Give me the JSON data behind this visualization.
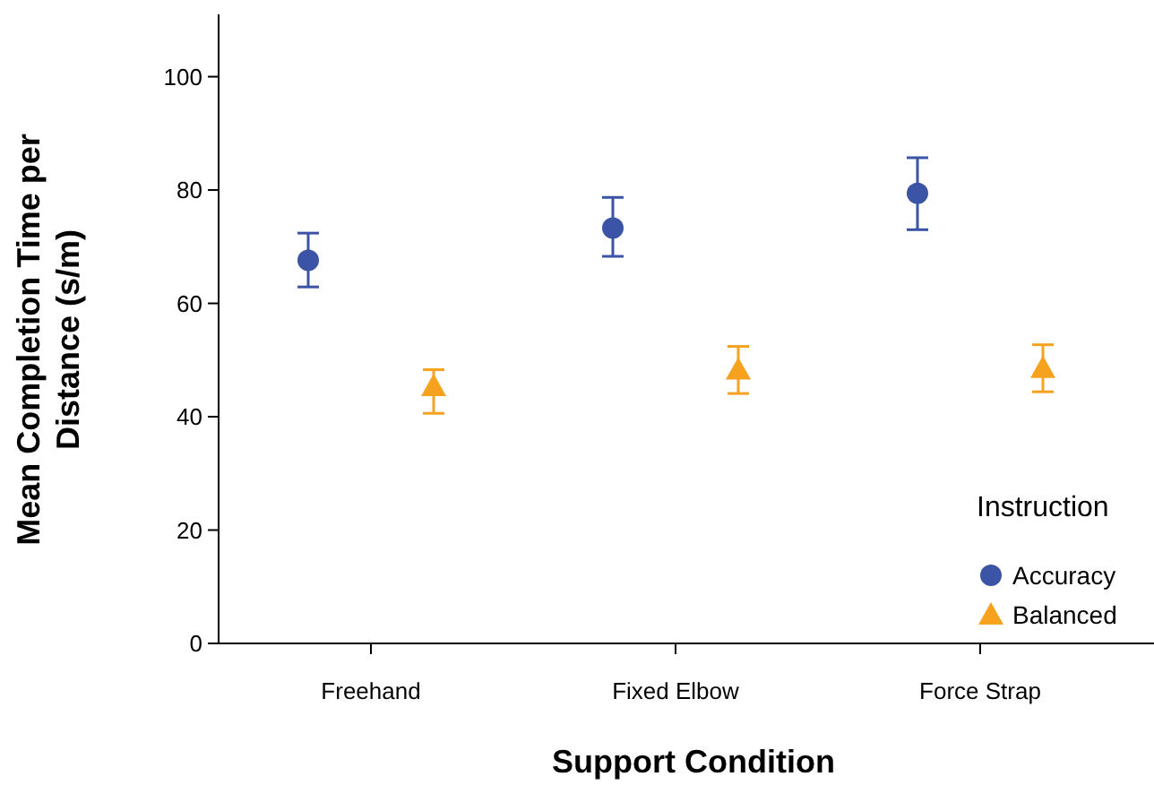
{
  "chart_data": {
    "type": "scatter",
    "xlabel": "Support Condition",
    "ylabel": "Mean Completion Time per Distance (s/m)",
    "legend_title": "Instruction",
    "legend": "bottom right",
    "grid": false,
    "categories": [
      "Freehand",
      "Fixed Elbow",
      "Force Strap"
    ],
    "ylim": [
      0,
      111
    ],
    "yticks": [
      0,
      20,
      40,
      60,
      80,
      100
    ],
    "series": [
      {
        "name": "Accuracy",
        "color": "#3b54a5",
        "marker": "circle",
        "values": [
          67.6,
          73.3,
          79.4
        ],
        "errors": [
          [
            62.9,
            72.4
          ],
          [
            68.3,
            78.7
          ],
          [
            73.0,
            85.7
          ]
        ]
      },
      {
        "name": "Balanced",
        "color": "#f7a21e",
        "marker": "triangle",
        "values": [
          45.4,
          48.3,
          48.6
        ],
        "errors": [
          [
            40.6,
            48.3
          ],
          [
            44.1,
            52.4
          ],
          [
            44.4,
            52.7
          ]
        ]
      }
    ]
  }
}
